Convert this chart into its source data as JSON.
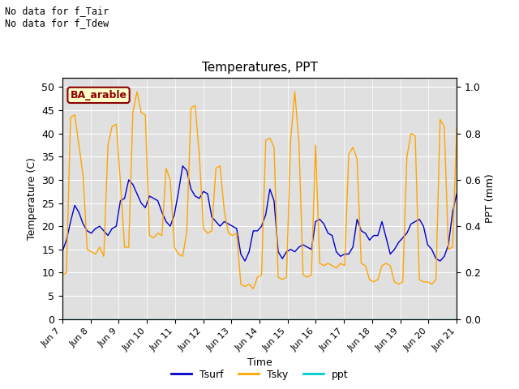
{
  "title": "Temperatures, PPT",
  "xlabel": "Time",
  "ylabel_left": "Temperature (C)",
  "ylabel_right": "PPT (mm)",
  "annotation_line1": "No data for f_Tair",
  "annotation_line2": "No data for f_Tdew",
  "box_label": "BA_arable",
  "xlim": [
    0,
    14
  ],
  "ylim_left": [
    0,
    52
  ],
  "ylim_right": [
    0,
    1.04
  ],
  "xtick_labels": [
    "Jun 7",
    "Jun 8",
    "Jun 9",
    "Jun 10",
    "Jun 11",
    "Jun 12",
    "Jun 13",
    "Jun 14",
    "Jun 15",
    "Jun 16",
    "Jun 17",
    "Jun 18",
    "Jun 19",
    "Jun 20",
    "Jun 21"
  ],
  "yticks_left": [
    0,
    5,
    10,
    15,
    20,
    25,
    30,
    35,
    40,
    45,
    50
  ],
  "yticks_right": [
    0.0,
    0.2,
    0.4,
    0.6,
    0.8,
    1.0
  ],
  "bg_color": "#e0e0e0",
  "line_tsurf_color": "#0000cc",
  "line_tsky_color": "#ffa500",
  "line_ppt_color": "#00cccc",
  "legend_labels": [
    "Tsurf",
    "Tsky",
    "ppt"
  ],
  "tsurf": [
    14.5,
    17.0,
    21.0,
    24.5,
    23.0,
    20.5,
    19.0,
    18.5,
    19.5,
    20.0,
    19.0,
    18.0,
    19.5,
    20.0,
    25.5,
    26.0,
    30.0,
    29.0,
    27.0,
    25.0,
    24.0,
    26.5,
    26.0,
    25.5,
    23.0,
    21.0,
    20.0,
    22.5,
    27.5,
    33.0,
    32.0,
    28.0,
    26.5,
    26.0,
    27.5,
    27.0,
    22.0,
    21.0,
    20.0,
    21.0,
    20.5,
    20.0,
    19.5,
    14.0,
    12.5,
    14.5,
    19.0,
    19.0,
    20.0,
    22.5,
    28.0,
    25.5,
    14.5,
    13.0,
    14.5,
    15.0,
    14.5,
    15.5,
    16.0,
    15.5,
    15.0,
    21.0,
    21.5,
    20.5,
    18.5,
    18.0,
    14.5,
    13.5,
    14.0,
    14.0,
    15.5,
    21.5,
    19.0,
    18.5,
    17.0,
    18.0,
    18.0,
    21.0,
    17.5,
    14.0,
    15.0,
    16.5,
    17.5,
    18.5,
    20.5,
    21.0,
    21.5,
    20.0,
    16.0,
    15.0,
    13.0,
    12.5,
    13.5,
    16.0,
    23.0,
    27.0
  ],
  "tsky": [
    9.5,
    10.0,
    43.5,
    44.0,
    37.5,
    31.0,
    15.0,
    14.5,
    14.0,
    15.5,
    13.5,
    37.5,
    41.5,
    42.0,
    29.5,
    15.5,
    15.5,
    44.5,
    49.0,
    44.5,
    44.0,
    18.0,
    17.5,
    18.5,
    18.0,
    32.5,
    30.0,
    15.5,
    14.0,
    13.5,
    19.0,
    45.5,
    46.0,
    35.5,
    19.5,
    18.5,
    19.0,
    32.5,
    33.0,
    23.5,
    18.5,
    18.0,
    18.5,
    7.5,
    7.0,
    7.5,
    6.5,
    9.0,
    9.5,
    38.5,
    39.0,
    37.0,
    9.0,
    8.5,
    9.0,
    38.5,
    49.0,
    38.0,
    9.5,
    9.0,
    9.5,
    37.5,
    12.0,
    11.5,
    12.0,
    11.5,
    11.0,
    12.0,
    11.5,
    35.5,
    37.0,
    34.5,
    12.0,
    11.5,
    8.5,
    8.0,
    8.5,
    11.5,
    12.0,
    11.5,
    8.0,
    7.5,
    8.0,
    35.0,
    40.0,
    39.5,
    8.5,
    8.0,
    8.0,
    7.5,
    8.5,
    43.0,
    41.5,
    15.0,
    15.5,
    41.0
  ],
  "ppt": [
    0.0,
    0.0,
    0.0,
    0.0,
    0.0,
    0.0,
    0.0,
    0.0,
    0.0,
    0.0,
    0.0,
    0.0,
    0.0,
    0.0,
    0.0,
    0.0,
    0.0,
    0.0,
    0.0,
    0.0,
    0.0,
    0.0,
    0.0,
    0.0,
    0.0,
    0.0,
    0.0,
    0.0,
    0.0,
    0.0,
    0.0,
    0.0,
    0.0,
    0.0,
    0.0,
    0.0,
    0.0,
    0.0,
    0.0,
    0.0,
    0.0,
    0.0,
    0.0,
    0.0,
    0.0,
    0.0,
    0.0,
    0.0,
    0.0,
    0.0,
    0.0,
    0.0,
    0.0,
    0.0,
    0.0,
    0.0,
    0.0,
    0.0,
    0.0,
    0.0,
    0.0,
    0.0,
    0.0,
    0.0,
    0.0,
    0.0,
    0.0,
    0.0,
    0.0,
    0.0,
    0.0,
    0.0,
    0.0,
    0.0,
    0.0,
    0.0,
    0.0,
    0.0,
    0.0,
    0.0,
    0.0,
    0.0,
    0.0,
    0.0,
    0.0,
    0.0,
    0.0,
    0.0,
    0.0,
    0.0,
    0.0,
    0.0,
    0.0,
    0.0,
    0.0,
    0.0
  ]
}
